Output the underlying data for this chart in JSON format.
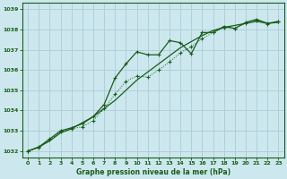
{
  "xlabel": "Graphe pression niveau de la mer (hPa)",
  "bg_color": "#cce8ee",
  "grid_color": "#b0cfd8",
  "line_color": "#1a5c1a",
  "xlim": [
    -0.5,
    23.5
  ],
  "ylim": [
    1031.7,
    1039.3
  ],
  "yticks": [
    1032,
    1033,
    1034,
    1035,
    1036,
    1037,
    1038,
    1039
  ],
  "xticks": [
    0,
    1,
    2,
    3,
    4,
    5,
    6,
    7,
    8,
    9,
    10,
    11,
    12,
    13,
    14,
    15,
    16,
    17,
    18,
    19,
    20,
    21,
    22,
    23
  ],
  "series_smooth_x": [
    0,
    1,
    2,
    3,
    4,
    5,
    6,
    7,
    8,
    9,
    10,
    11,
    12,
    13,
    14,
    15,
    16,
    17,
    18,
    19,
    20,
    21,
    22,
    23
  ],
  "series_smooth_y": [
    1032.0,
    1032.2,
    1032.5,
    1032.9,
    1033.1,
    1033.4,
    1033.7,
    1034.1,
    1034.5,
    1035.0,
    1035.5,
    1035.9,
    1036.3,
    1036.7,
    1037.1,
    1037.4,
    1037.7,
    1037.95,
    1038.1,
    1038.2,
    1038.3,
    1038.4,
    1038.3,
    1038.35
  ],
  "series_main_x": [
    0,
    1,
    2,
    3,
    4,
    5,
    6,
    7,
    8,
    9,
    10,
    11,
    12,
    13,
    14,
    15,
    16,
    17,
    18,
    19,
    20,
    21,
    22,
    23
  ],
  "series_main_y": [
    1032.0,
    1032.2,
    1032.6,
    1033.0,
    1033.15,
    1033.35,
    1033.7,
    1034.3,
    1035.6,
    1036.3,
    1036.9,
    1036.75,
    1036.75,
    1037.45,
    1037.35,
    1036.8,
    1037.85,
    1037.85,
    1038.15,
    1038.05,
    1038.35,
    1038.5,
    1038.3,
    1038.4
  ],
  "series_dot_x": [
    0,
    1,
    2,
    3,
    4,
    5,
    6,
    7,
    8,
    9,
    10,
    11,
    12,
    13,
    14,
    15,
    16,
    17,
    18,
    19,
    20,
    21,
    22,
    23
  ],
  "series_dot_y": [
    1032.0,
    1032.15,
    1032.55,
    1032.95,
    1033.1,
    1033.2,
    1033.5,
    1034.1,
    1034.8,
    1035.45,
    1035.7,
    1035.65,
    1036.0,
    1036.4,
    1036.85,
    1037.15,
    1037.55,
    1037.85,
    1038.1,
    1038.05,
    1038.3,
    1038.45,
    1038.28,
    1038.38
  ]
}
